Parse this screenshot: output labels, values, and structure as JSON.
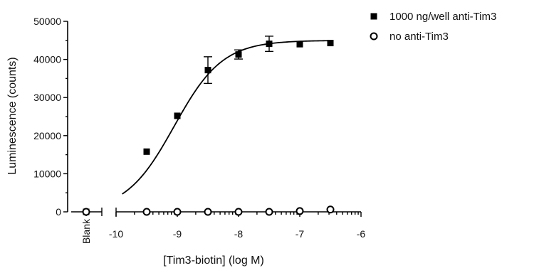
{
  "chart_data": {
    "type": "scatter",
    "title": "",
    "xlabel": "[Tim3-biotin] (log M)",
    "ylabel": "Luminescence (counts)",
    "xlim": [
      -10,
      -6
    ],
    "ylim": [
      0,
      50000
    ],
    "x_ticks": [
      "-10",
      "-9",
      "-8",
      "-7",
      "-6"
    ],
    "y_ticks": [
      "0",
      "10000",
      "20000",
      "30000",
      "40000",
      "50000"
    ],
    "blank_label": "Blank",
    "legend_position": "top-right",
    "series": [
      {
        "name": "1000 ng/well anti-Tim3",
        "marker": "filled-square",
        "color": "#000000",
        "blank_value": 0,
        "points": [
          {
            "x": -9.5,
            "y": 15800,
            "err": 0
          },
          {
            "x": -9.0,
            "y": 25200,
            "err": 0
          },
          {
            "x": -8.5,
            "y": 37200,
            "err": 3500
          },
          {
            "x": -8.0,
            "y": 41300,
            "err": 1200
          },
          {
            "x": -7.5,
            "y": 44100,
            "err": 2000
          },
          {
            "x": -7.0,
            "y": 44000,
            "err": 0
          },
          {
            "x": -6.5,
            "y": 44300,
            "err": 0
          }
        ],
        "fit": {
          "model": "sigmoidal dose-response",
          "bottom": 0,
          "top": 45000,
          "log_ec50": -9.05,
          "hill_slope": 1.1,
          "x_range": [
            -9.9,
            -6.5
          ]
        }
      },
      {
        "name": "no anti-Tim3",
        "marker": "open-circle",
        "color": "#000000",
        "blank_value": 0,
        "points": [
          {
            "x": -9.5,
            "y": 0
          },
          {
            "x": -9.0,
            "y": 0
          },
          {
            "x": -8.5,
            "y": 0
          },
          {
            "x": -8.0,
            "y": 0
          },
          {
            "x": -7.5,
            "y": 0
          },
          {
            "x": -7.0,
            "y": 200
          },
          {
            "x": -6.5,
            "y": 600
          }
        ]
      }
    ]
  }
}
